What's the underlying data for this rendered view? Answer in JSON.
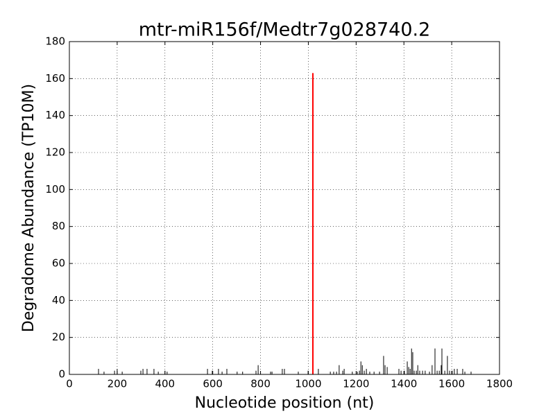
{
  "chart_data": {
    "type": "stem",
    "title": "mtr-miR156f/Medtr7g028740.2",
    "x_label": "Nucleotide position (nt)",
    "y_label": "Degradome Abundance (TP10M)",
    "xlim": [
      0,
      1800
    ],
    "xticks": [
      0,
      200,
      400,
      600,
      800,
      1000,
      1200,
      1400,
      1600,
      1800
    ],
    "ylim": [
      0,
      180
    ],
    "yticks": [
      0,
      20,
      40,
      60,
      80,
      100,
      120,
      140,
      160,
      180
    ],
    "grid": true,
    "series": [
      {
        "color": "#000000",
        "linewidth": 1,
        "x": [
          122,
          145,
          189,
          200,
          221,
          299,
          308,
          325,
          354,
          372,
          400,
          409,
          578,
          598,
          624,
          639,
          659,
          702,
          725,
          781,
          790,
          842,
          848,
          891,
          900,
          958,
          999,
          1042,
          1092,
          1106,
          1118,
          1129,
          1144,
          1150,
          1184,
          1205,
          1214,
          1220,
          1226,
          1234,
          1243,
          1257,
          1275,
          1298,
          1315,
          1321,
          1330,
          1379,
          1388,
          1402,
          1414,
          1420,
          1426,
          1432,
          1437,
          1443,
          1452,
          1458,
          1466,
          1478,
          1489,
          1507,
          1518,
          1530,
          1539,
          1548,
          1556,
          1559,
          1571,
          1582,
          1591,
          1602,
          1611,
          1623,
          1646,
          1655,
          1681
        ],
        "values": [
          3,
          1.5,
          2,
          3,
          1.5,
          2,
          3,
          3,
          3,
          1.5,
          2,
          1.5,
          3,
          2,
          3,
          1.5,
          3,
          1.5,
          1.5,
          2,
          5,
          1.5,
          1.5,
          3,
          3,
          1.5,
          2,
          3,
          1.5,
          1.5,
          1.5,
          5,
          2,
          3,
          1.5,
          1.5,
          2,
          7,
          5,
          2,
          3,
          1.5,
          1.5,
          1.5,
          10,
          5,
          4,
          3,
          2,
          2,
          7,
          4,
          3,
          14,
          12,
          2,
          2,
          5,
          2,
          2,
          2,
          1.5,
          5,
          14,
          2,
          2,
          5,
          14,
          2,
          10,
          2,
          2,
          3,
          3,
          3,
          1.5,
          1.5
        ]
      },
      {
        "color": "#ff0000",
        "linewidth": 2,
        "x": [
          1019
        ],
        "values": [
          163
        ]
      }
    ]
  }
}
